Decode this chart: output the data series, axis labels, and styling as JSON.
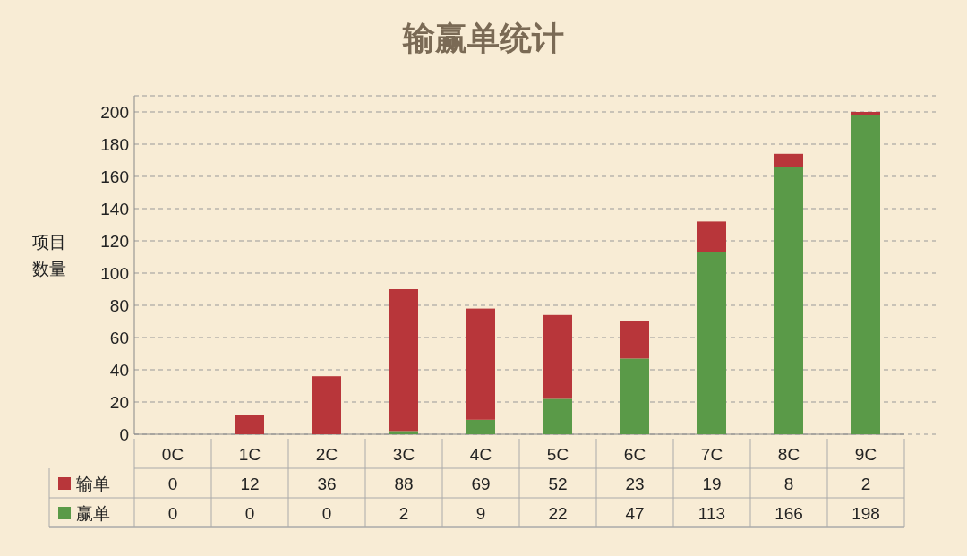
{
  "chart_data": {
    "type": "bar",
    "title": "输赢单统计",
    "ylabel": "项目数量",
    "stacked": true,
    "data_labels": true,
    "legend": "bottom",
    "grid": "y",
    "categories": [
      "0C",
      "1C",
      "2C",
      "3C",
      "4C",
      "5C",
      "6C",
      "7C",
      "8C",
      "9C"
    ],
    "ylim": [
      0,
      210
    ],
    "yticks": [
      0,
      20,
      40,
      60,
      80,
      100,
      120,
      140,
      160,
      180,
      200
    ],
    "series": [
      {
        "name": "赢单",
        "color": "#5a9a48",
        "values": [
          0,
          0,
          0,
          2,
          9,
          22,
          47,
          113,
          166,
          198
        ]
      },
      {
        "name": "输单",
        "color": "#b8363a",
        "values": [
          0,
          12,
          36,
          88,
          69,
          52,
          23,
          19,
          8,
          2
        ]
      }
    ]
  }
}
